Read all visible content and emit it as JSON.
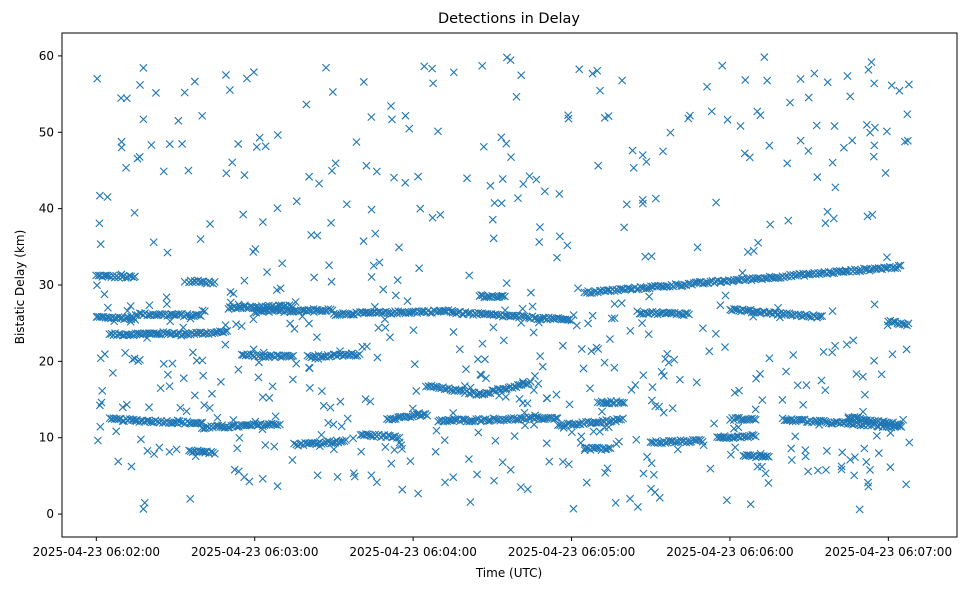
{
  "chart_data": {
    "type": "scatter",
    "title": "Detections in Delay",
    "xlabel": "Time (UTC)",
    "ylabel": "Bistatic Delay (km)",
    "x_range": [
      "2025-04-23 06:01:47",
      "2025-04-23 06:07:26"
    ],
    "ylim": [
      -3.0,
      63.0
    ],
    "x_ticks": [
      "2025-04-23 06:02:00",
      "2025-04-23 06:03:00",
      "2025-04-23 06:04:00",
      "2025-04-23 06:05:00",
      "2025-04-23 06:06:00",
      "2025-04-23 06:07:00"
    ],
    "y_ticks": [
      0,
      10,
      20,
      30,
      40,
      50,
      60
    ],
    "grid": false,
    "legend": "none",
    "marker": "x",
    "series": [
      {
        "color": "#1f77b4",
        "tracks": [
          {
            "x_start": "2025-04-23 06:02:00",
            "x_end": "2025-04-23 06:02:15",
            "y_start": 31.2,
            "y_end": 31.0
          },
          {
            "x_start": "2025-04-23 06:02:00",
            "x_end": "2025-04-23 06:02:15",
            "y_start": 25.8,
            "y_end": 25.6
          },
          {
            "x_start": "2025-04-23 06:02:05",
            "x_end": "2025-04-23 06:02:30",
            "y_start": 23.5,
            "y_end": 23.7
          },
          {
            "x_start": "2025-04-23 06:02:15",
            "x_end": "2025-04-23 06:02:40",
            "y_start": 26.2,
            "y_end": 26.0
          },
          {
            "x_start": "2025-04-23 06:02:30",
            "x_end": "2025-04-23 06:02:50",
            "y_start": 23.5,
            "y_end": 23.9
          },
          {
            "x_start": "2025-04-23 06:02:35",
            "x_end": "2025-04-23 06:02:45",
            "y_start": 30.5,
            "y_end": 30.3
          },
          {
            "x_start": "2025-04-23 06:02:05",
            "x_end": "2025-04-23 06:02:40",
            "y_start": 12.4,
            "y_end": 11.9
          },
          {
            "x_start": "2025-04-23 06:02:40",
            "x_end": "2025-04-23 06:03:10",
            "y_start": 11.3,
            "y_end": 11.8
          },
          {
            "x_start": "2025-04-23 06:02:35",
            "x_end": "2025-04-23 06:02:45",
            "y_start": 8.3,
            "y_end": 8.0
          },
          {
            "x_start": "2025-04-23 06:02:50",
            "x_end": "2025-04-23 06:03:15",
            "y_start": 27.0,
            "y_end": 27.2
          },
          {
            "x_start": "2025-04-23 06:02:55",
            "x_end": "2025-04-23 06:03:15",
            "y_start": 20.8,
            "y_end": 20.6
          },
          {
            "x_start": "2025-04-23 06:03:00",
            "x_end": "2025-04-23 06:03:30",
            "y_start": 26.5,
            "y_end": 26.8
          },
          {
            "x_start": "2025-04-23 06:03:15",
            "x_end": "2025-04-23 06:03:35",
            "y_start": 9.1,
            "y_end": 9.6
          },
          {
            "x_start": "2025-04-23 06:03:20",
            "x_end": "2025-04-23 06:03:40",
            "y_start": 20.6,
            "y_end": 20.9
          },
          {
            "x_start": "2025-04-23 06:03:30",
            "x_end": "2025-04-23 06:04:15",
            "y_start": 26.2,
            "y_end": 26.6
          },
          {
            "x_start": "2025-04-23 06:03:40",
            "x_end": "2025-04-23 06:03:55",
            "y_start": 10.4,
            "y_end": 10.1
          },
          {
            "x_start": "2025-04-23 06:03:50",
            "x_end": "2025-04-23 06:04:05",
            "y_start": 12.5,
            "y_end": 13.0
          },
          {
            "x_start": "2025-04-23 06:04:05",
            "x_end": "2025-04-23 06:04:25",
            "y_start": 16.8,
            "y_end": 15.7
          },
          {
            "x_start": "2025-04-23 06:04:25",
            "x_end": "2025-04-23 06:04:45",
            "y_start": 15.7,
            "y_end": 17.2
          },
          {
            "x_start": "2025-04-23 06:04:10",
            "x_end": "2025-04-23 06:04:55",
            "y_start": 12.2,
            "y_end": 12.6
          },
          {
            "x_start": "2025-04-23 06:04:15",
            "x_end": "2025-04-23 06:05:00",
            "y_start": 26.4,
            "y_end": 25.4
          },
          {
            "x_start": "2025-04-23 06:04:25",
            "x_end": "2025-04-23 06:04:35",
            "y_start": 28.6,
            "y_end": 28.4
          },
          {
            "x_start": "2025-04-23 06:04:55",
            "x_end": "2025-04-23 06:05:20",
            "y_start": 11.6,
            "y_end": 12.4
          },
          {
            "x_start": "2025-04-23 06:05:05",
            "x_end": "2025-04-23 06:07:05",
            "y_start": 29.0,
            "y_end": 32.4
          },
          {
            "x_start": "2025-04-23 06:05:10",
            "x_end": "2025-04-23 06:05:20",
            "y_start": 14.6,
            "y_end": 14.7
          },
          {
            "x_start": "2025-04-23 06:05:25",
            "x_end": "2025-04-23 06:05:45",
            "y_start": 26.4,
            "y_end": 26.2
          },
          {
            "x_start": "2025-04-23 06:05:30",
            "x_end": "2025-04-23 06:05:50",
            "y_start": 9.4,
            "y_end": 9.6
          },
          {
            "x_start": "2025-04-23 06:05:55",
            "x_end": "2025-04-23 06:06:10",
            "y_start": 10.0,
            "y_end": 10.3
          },
          {
            "x_start": "2025-04-23 06:06:00",
            "x_end": "2025-04-23 06:06:35",
            "y_start": 26.8,
            "y_end": 25.8
          },
          {
            "x_start": "2025-04-23 06:06:00",
            "x_end": "2025-04-23 06:06:10",
            "y_start": 12.5,
            "y_end": 12.4
          },
          {
            "x_start": "2025-04-23 06:06:20",
            "x_end": "2025-04-23 06:07:05",
            "y_start": 12.4,
            "y_end": 11.4
          },
          {
            "x_start": "2025-04-23 06:06:45",
            "x_end": "2025-04-23 06:07:05",
            "y_start": 12.7,
            "y_end": 11.7
          },
          {
            "x_start": "2025-04-23 06:06:05",
            "x_end": "2025-04-23 06:06:15",
            "y_start": 7.6,
            "y_end": 7.4
          },
          {
            "x_start": "2025-04-23 06:05:05",
            "x_end": "2025-04-23 06:05:15",
            "y_start": 8.6,
            "y_end": 8.5
          },
          {
            "x_start": "2025-04-23 06:07:00",
            "x_end": "2025-04-23 06:07:08",
            "y_start": 25.2,
            "y_end": 24.8
          }
        ],
        "noise": {
          "count": 600,
          "x_range": [
            "2025-04-23 06:02:00",
            "2025-04-23 06:07:08"
          ],
          "y_range": [
            0.5,
            60.0
          ]
        }
      }
    ]
  }
}
